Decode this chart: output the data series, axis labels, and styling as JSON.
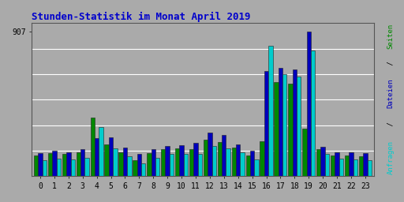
{
  "title": "Stunden-Statistik im Monat April 2019",
  "title_color": "#0000cc",
  "background_color": "#aaaaaa",
  "ymax": 960,
  "ytick_val": 907,
  "hours": [
    0,
    1,
    2,
    3,
    4,
    5,
    6,
    7,
    8,
    9,
    10,
    11,
    12,
    13,
    14,
    15,
    16,
    17,
    18,
    19,
    20,
    21,
    22,
    23
  ],
  "seiten": [
    130,
    145,
    140,
    150,
    370,
    200,
    150,
    100,
    145,
    170,
    175,
    170,
    230,
    215,
    180,
    130,
    220,
    590,
    580,
    300,
    170,
    130,
    130,
    125
  ],
  "dateien": [
    145,
    158,
    152,
    168,
    238,
    245,
    178,
    138,
    172,
    192,
    193,
    210,
    275,
    258,
    198,
    162,
    660,
    680,
    670,
    907,
    185,
    152,
    152,
    145
  ],
  "anfragen": [
    100,
    112,
    108,
    118,
    310,
    175,
    125,
    82,
    118,
    138,
    142,
    140,
    188,
    175,
    148,
    104,
    820,
    640,
    625,
    790,
    140,
    110,
    108,
    100
  ],
  "color_green": "#008800",
  "color_blue": "#0000bb",
  "color_cyan": "#00cccc",
  "bar_width": 0.3,
  "grid_color": "#cccccc",
  "label_seiten": "Seiten",
  "label_dateien": "Dateien",
  "label_anfragen": "Anfragen",
  "label_sep": " / "
}
